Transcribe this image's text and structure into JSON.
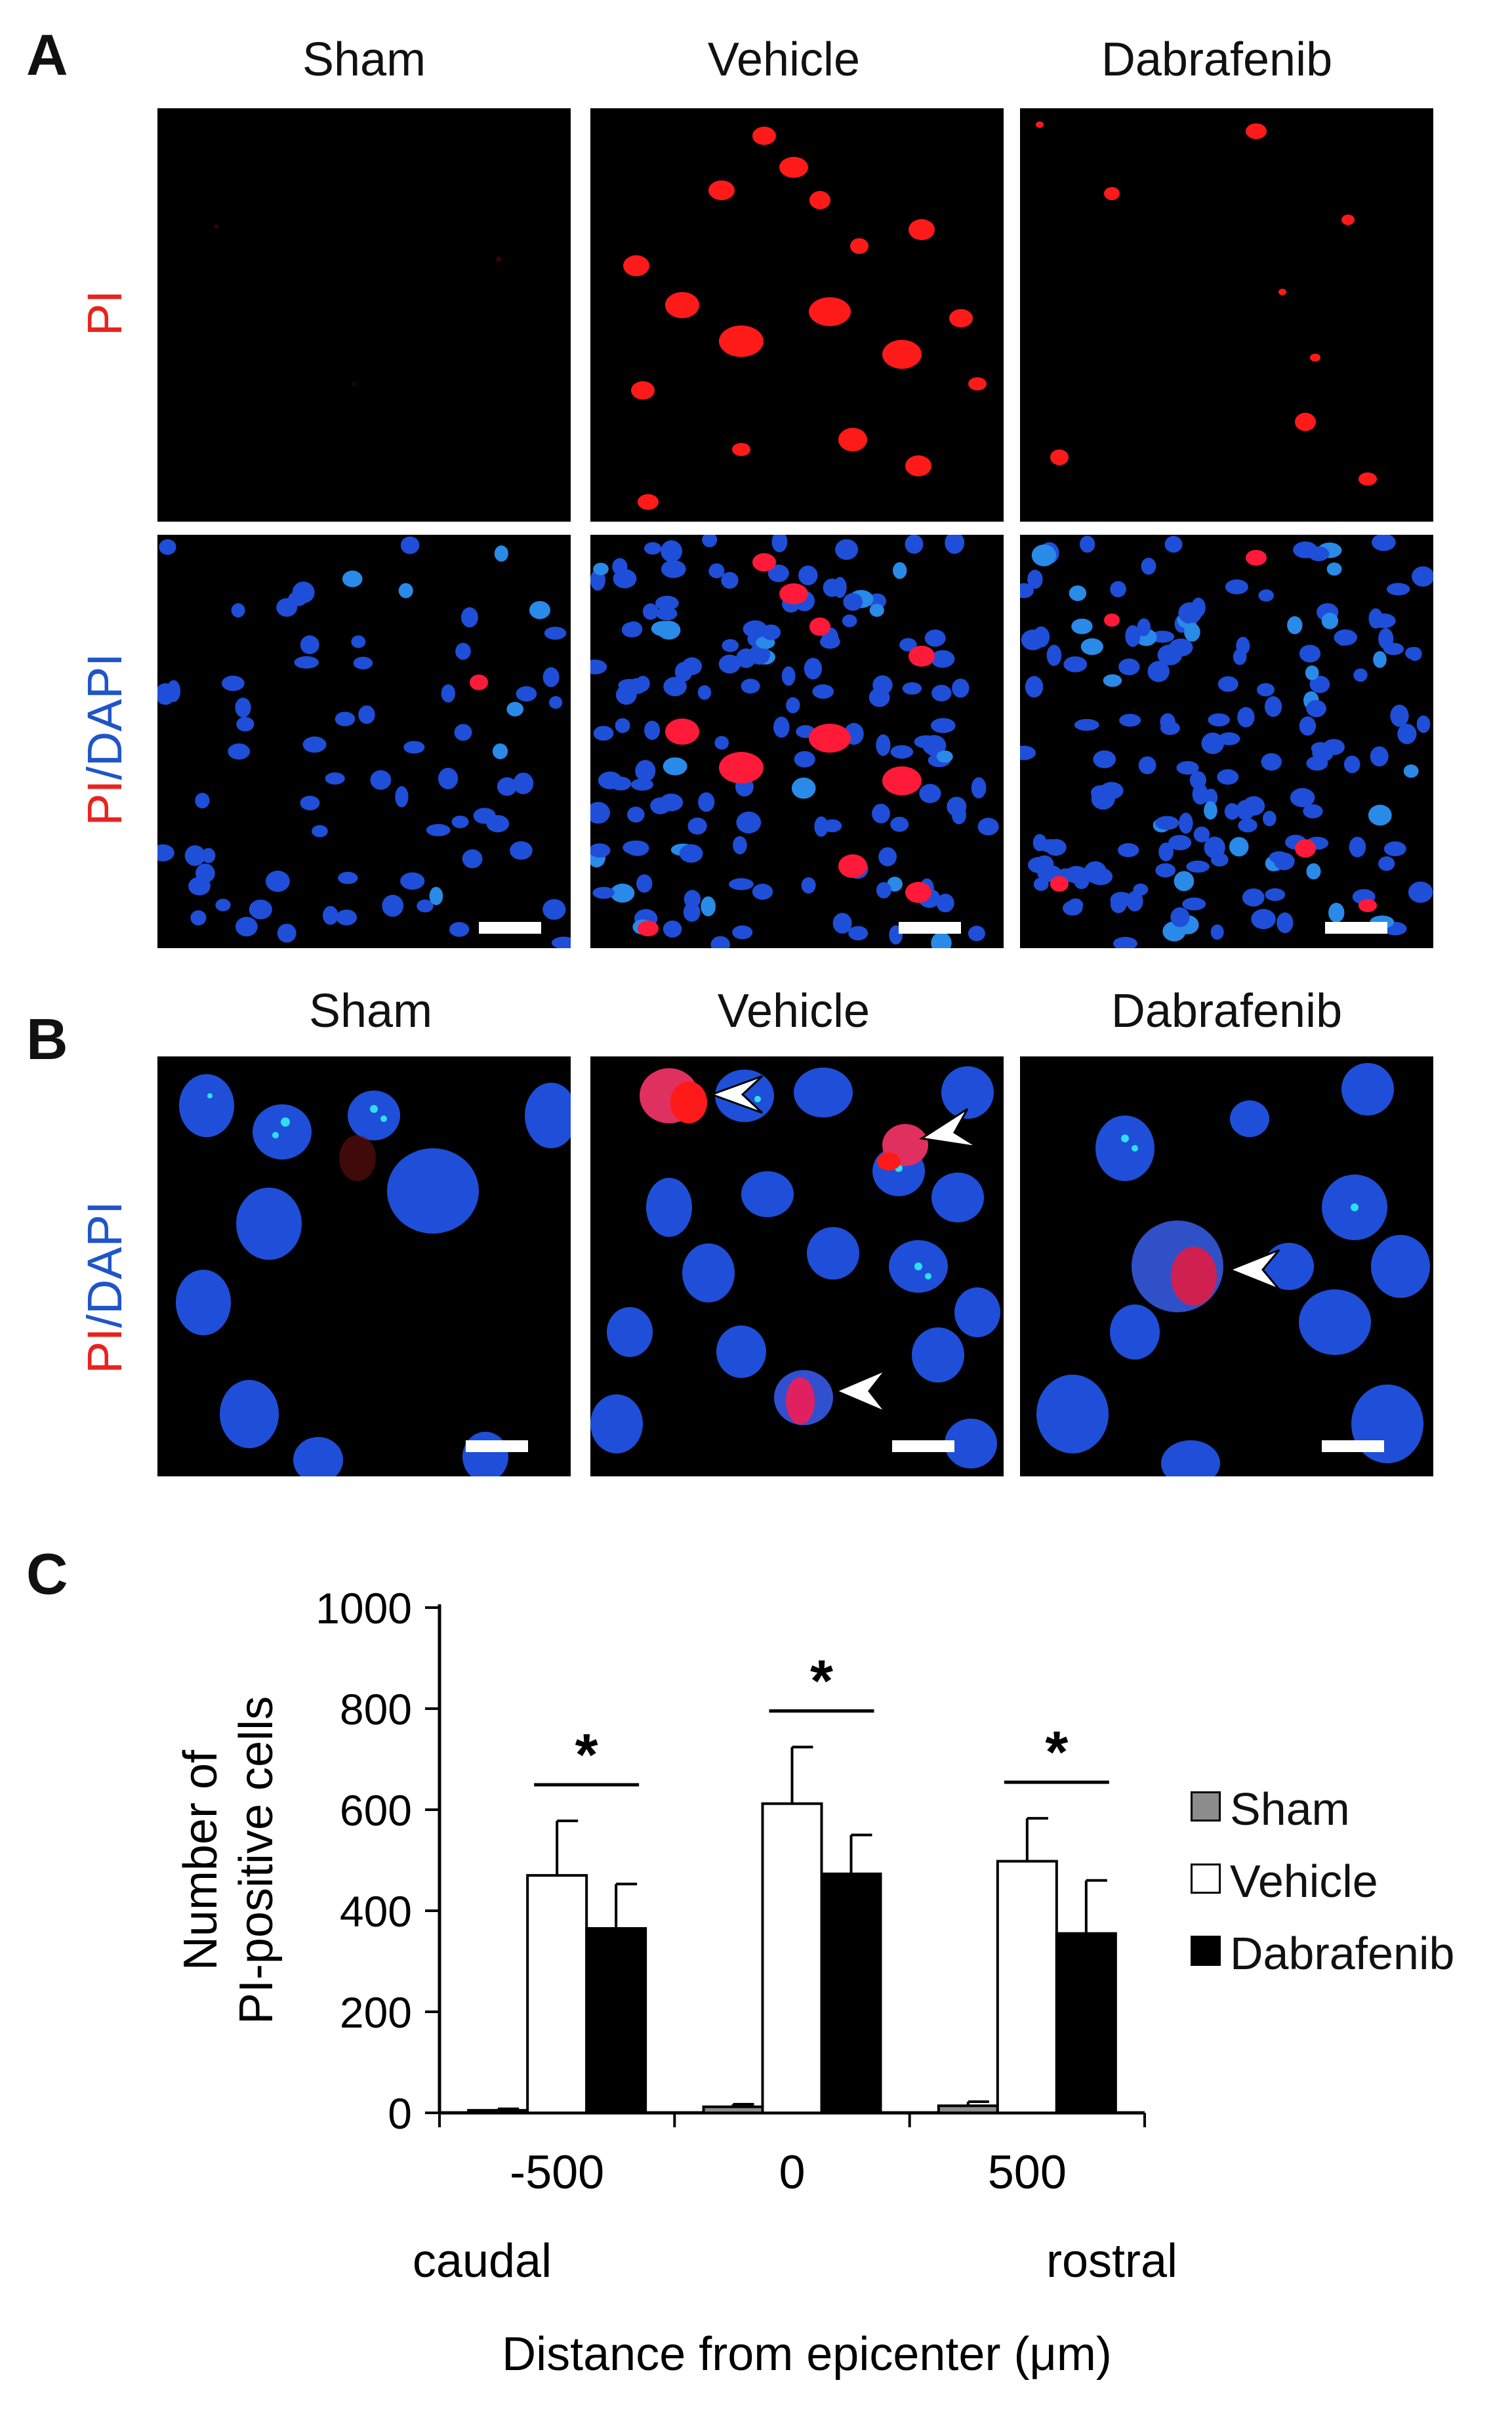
{
  "panel_a": {
    "letter": "A",
    "columns": [
      "Sham",
      "Vehicle",
      "Dabrafenib"
    ],
    "rows": [
      {
        "label_parts": [
          {
            "text": "PI",
            "color": "#e8231f"
          }
        ]
      },
      {
        "label_parts": [
          {
            "text": "PI",
            "color": "#e8231f"
          },
          {
            "text": "/DAPI",
            "color": "#1f55c8"
          }
        ]
      }
    ]
  },
  "panel_b": {
    "letter": "B",
    "columns": [
      "Sham",
      "Vehicle",
      "Dabrafenib"
    ],
    "row_label_parts": [
      {
        "text": "PI",
        "color": "#e8231f"
      },
      {
        "text": "/DAPI",
        "color": "#1f55c8"
      }
    ]
  },
  "panel_c": {
    "letter": "C"
  },
  "chart_data": {
    "type": "bar",
    "ylabel_line1": "Number of",
    "ylabel_line2": "PI-positive cells",
    "xlabel": "Distance from epicenter (μm)",
    "ylim": [
      0,
      1000
    ],
    "yticks": [
      0,
      200,
      400,
      600,
      800,
      1000
    ],
    "categories": [
      "-500",
      "0",
      "500"
    ],
    "category_sublabels": {
      "left": "caudal",
      "right": "rostral"
    },
    "series": [
      {
        "name": "Sham",
        "color": "#8c8c8c",
        "values": [
          5,
          12,
          14
        ],
        "errors": [
          3,
          5,
          8
        ]
      },
      {
        "name": "Vehicle",
        "color": "#ffffff",
        "values": [
          470,
          612,
          498
        ],
        "errors": [
          108,
          112,
          85
        ]
      },
      {
        "name": "Dabrafenib",
        "color": "#000000",
        "values": [
          365,
          473,
          355
        ],
        "errors": [
          88,
          77,
          105
        ]
      }
    ],
    "significance": [
      {
        "category": "-500",
        "label": "*"
      },
      {
        "category": "0",
        "label": "*"
      },
      {
        "category": "500",
        "label": "*"
      }
    ],
    "legend_position": "right"
  }
}
